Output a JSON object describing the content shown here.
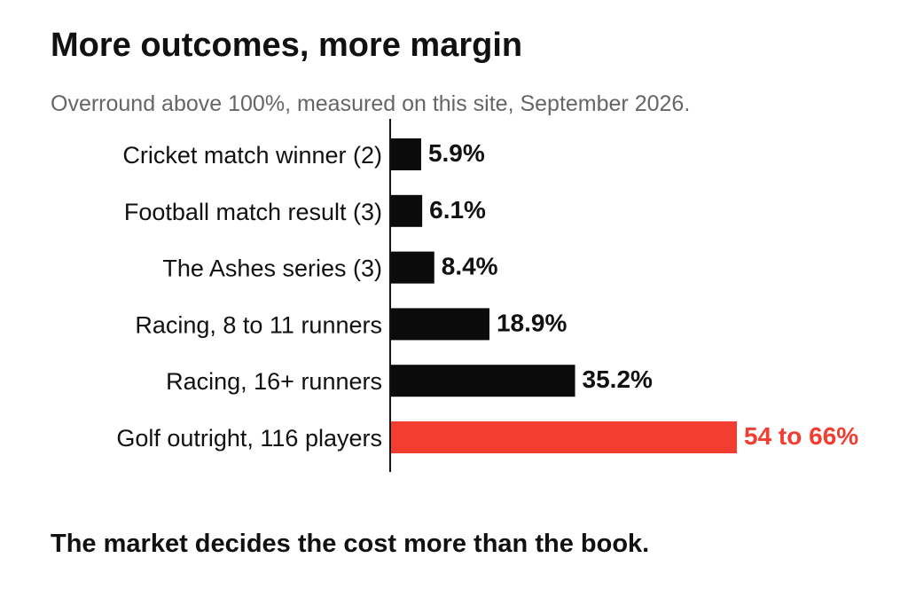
{
  "title": "More outcomes, more margin",
  "subtitle": "Overround above 100%, measured on this site, September 2026.",
  "footer": "The market decides the cost more than the book.",
  "colors": {
    "bar": "#0b0b0b",
    "highlight": "#f23d30",
    "text": "#111111",
    "subtitle": "#666666",
    "axis": "#111111"
  },
  "chart_data": {
    "type": "bar",
    "orientation": "horizontal",
    "categories": [
      "Cricket match winner (2)",
      "Football match result (3)",
      "The Ashes series (3)",
      "Racing, 8 to 11 runners",
      "Racing, 16+ runners",
      "Golf outright, 116 players"
    ],
    "values": [
      5.9,
      6.1,
      8.4,
      18.9,
      35.2,
      66
    ],
    "range_low": [
      null,
      null,
      null,
      null,
      null,
      54
    ],
    "value_labels": [
      "5.9%",
      "6.1%",
      "8.4%",
      "18.9%",
      "35.2%",
      "54 to 66%"
    ],
    "highlight": [
      false,
      false,
      false,
      false,
      false,
      true
    ],
    "xlim": [
      0,
      66
    ],
    "grid": false,
    "legend": "none",
    "xlabel": "",
    "ylabel": ""
  }
}
